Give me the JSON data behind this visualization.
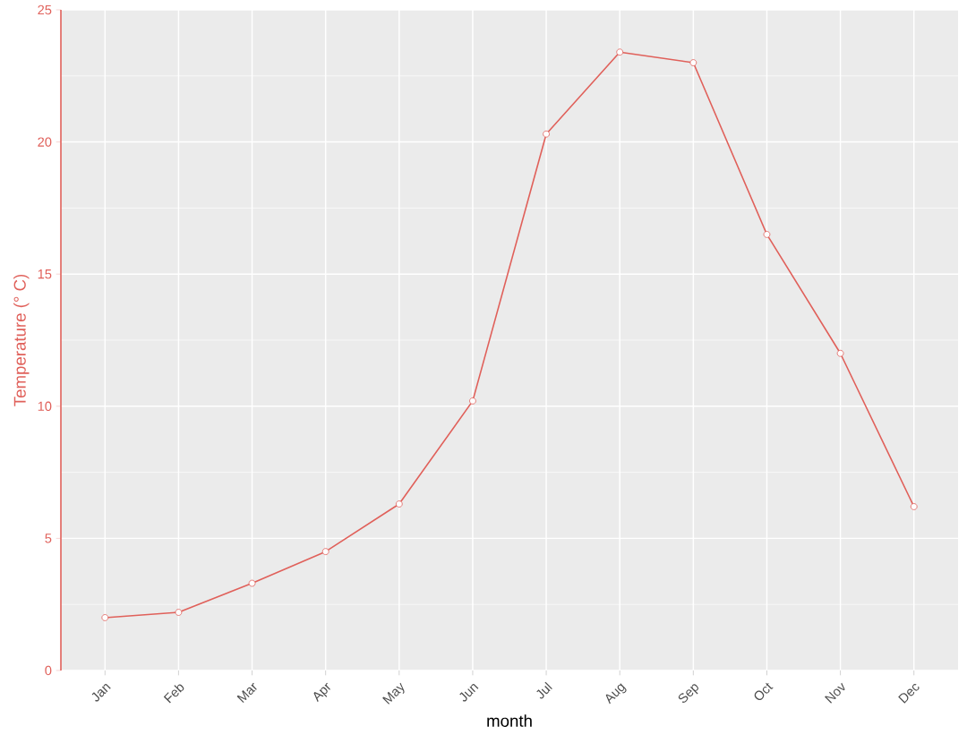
{
  "chart_data": {
    "type": "line",
    "xlabel": "month",
    "ylabel": "Temperature (° C)",
    "categories": [
      "Jan",
      "Feb",
      "Mar",
      "Apr",
      "May",
      "Jun",
      "Jul",
      "Aug",
      "Sep",
      "Oct",
      "Nov",
      "Dec"
    ],
    "values": [
      2.0,
      2.2,
      3.3,
      4.5,
      6.3,
      10.2,
      20.3,
      23.4,
      23.0,
      16.5,
      12.0,
      6.2
    ],
    "color": "#e0605a",
    "ylim": [
      0,
      25
    ],
    "yticks": [
      0,
      5,
      10,
      15,
      20,
      25
    ],
    "grid": true,
    "marker": "circle",
    "line_style": "solid"
  }
}
